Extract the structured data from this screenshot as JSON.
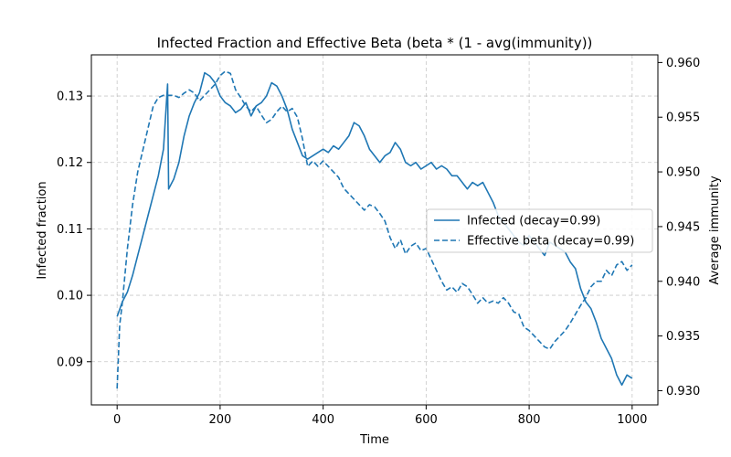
{
  "chart_data": {
    "type": "line",
    "title": "Infected Fraction and Effective Beta (beta * (1 - avg(immunity))",
    "xlabel": "Time",
    "ylabel_left": "Infected fraction",
    "ylabel_right": "Average immunity",
    "xlim": [
      -50,
      1050
    ],
    "ylim_left": [
      0.0835,
      0.1362
    ],
    "ylim_right": [
      0.9287,
      0.9607
    ],
    "xticks": [
      0,
      200,
      400,
      600,
      800,
      1000
    ],
    "yticks_left": [
      0.09,
      0.1,
      0.11,
      0.12,
      0.13
    ],
    "yticks_right": [
      0.93,
      0.935,
      0.94,
      0.945,
      0.95,
      0.955,
      0.96
    ],
    "grid": true,
    "legend_position": "right",
    "color": "#1f77b4",
    "series": [
      {
        "name": "Infected (decay=0.99)",
        "axis": "left",
        "style": "solid",
        "x": [
          0,
          10,
          20,
          30,
          40,
          50,
          60,
          70,
          80,
          90,
          98,
          100,
          110,
          120,
          130,
          140,
          150,
          160,
          170,
          180,
          190,
          200,
          210,
          220,
          230,
          240,
          250,
          260,
          270,
          280,
          290,
          300,
          310,
          320,
          330,
          340,
          350,
          360,
          370,
          380,
          390,
          400,
          410,
          420,
          430,
          440,
          450,
          460,
          470,
          480,
          490,
          500,
          510,
          520,
          530,
          540,
          550,
          560,
          570,
          580,
          590,
          600,
          610,
          620,
          630,
          640,
          650,
          660,
          670,
          680,
          690,
          700,
          710,
          720,
          730,
          740,
          750,
          760,
          770,
          780,
          790,
          800,
          810,
          820,
          830,
          840,
          850,
          860,
          870,
          880,
          890,
          900,
          910,
          920,
          930,
          940,
          950,
          960,
          970,
          980,
          990,
          1000
        ],
        "values": [
          0.0968,
          0.099,
          0.1005,
          0.103,
          0.106,
          0.109,
          0.112,
          0.115,
          0.118,
          0.122,
          0.1318,
          0.116,
          0.1175,
          0.12,
          0.124,
          0.127,
          0.129,
          0.1305,
          0.1335,
          0.133,
          0.132,
          0.13,
          0.129,
          0.1285,
          0.1275,
          0.128,
          0.129,
          0.127,
          0.1285,
          0.129,
          0.13,
          0.132,
          0.1315,
          0.13,
          0.128,
          0.125,
          0.123,
          0.121,
          0.1205,
          0.121,
          0.1215,
          0.122,
          0.1215,
          0.1225,
          0.122,
          0.123,
          0.124,
          0.126,
          0.1255,
          0.124,
          0.122,
          0.121,
          0.12,
          0.121,
          0.1215,
          0.123,
          0.122,
          0.12,
          0.1195,
          0.12,
          0.119,
          0.1195,
          0.12,
          0.119,
          0.1195,
          0.119,
          0.118,
          0.118,
          0.117,
          0.116,
          0.117,
          0.1165,
          0.117,
          0.1155,
          0.114,
          0.112,
          0.111,
          0.11,
          0.109,
          0.108,
          0.1075,
          0.109,
          0.108,
          0.107,
          0.106,
          0.108,
          0.1075,
          0.107,
          0.1065,
          0.105,
          0.104,
          0.101,
          0.099,
          0.098,
          0.096,
          0.0935,
          0.092,
          0.0905,
          0.088,
          0.0865,
          0.088,
          0.0875
        ]
      },
      {
        "name": "Effective beta (decay=0.99)",
        "axis": "right",
        "style": "dashed",
        "x": [
          0,
          5,
          10,
          20,
          30,
          40,
          50,
          60,
          70,
          80,
          90,
          100,
          110,
          120,
          130,
          140,
          150,
          160,
          170,
          180,
          190,
          200,
          210,
          220,
          230,
          240,
          250,
          260,
          270,
          280,
          290,
          300,
          310,
          320,
          330,
          340,
          350,
          360,
          370,
          380,
          390,
          400,
          410,
          420,
          430,
          440,
          450,
          460,
          470,
          480,
          490,
          500,
          510,
          520,
          530,
          540,
          550,
          560,
          570,
          580,
          590,
          600,
          610,
          620,
          630,
          640,
          650,
          660,
          670,
          680,
          690,
          700,
          710,
          720,
          730,
          740,
          750,
          760,
          770,
          780,
          790,
          800,
          810,
          820,
          830,
          840,
          850,
          860,
          870,
          880,
          890,
          900,
          910,
          920,
          930,
          940,
          950,
          960,
          970,
          980,
          990,
          1000
        ],
        "values": [
          0.9302,
          0.936,
          0.938,
          0.943,
          0.947,
          0.95,
          0.952,
          0.954,
          0.956,
          0.9568,
          0.957,
          0.957,
          0.957,
          0.9568,
          0.9572,
          0.9575,
          0.9572,
          0.9565,
          0.957,
          0.9575,
          0.958,
          0.9588,
          0.9592,
          0.959,
          0.9575,
          0.9568,
          0.956,
          0.9555,
          0.956,
          0.9552,
          0.9545,
          0.9548,
          0.9555,
          0.956,
          0.9555,
          0.9558,
          0.955,
          0.953,
          0.9505,
          0.951,
          0.9505,
          0.951,
          0.9505,
          0.95,
          0.9495,
          0.9485,
          0.948,
          0.9475,
          0.947,
          0.9465,
          0.947,
          0.9468,
          0.9462,
          0.9455,
          0.944,
          0.943,
          0.9438,
          0.9425,
          0.9432,
          0.9435,
          0.9428,
          0.943,
          0.942,
          0.941,
          0.94,
          0.9392,
          0.9395,
          0.939,
          0.9398,
          0.9395,
          0.9388,
          0.938,
          0.9385,
          0.938,
          0.9382,
          0.938,
          0.9385,
          0.938,
          0.9372,
          0.937,
          0.9358,
          0.9355,
          0.935,
          0.9345,
          0.934,
          0.9338,
          0.9345,
          0.935,
          0.9355,
          0.9362,
          0.937,
          0.9378,
          0.9385,
          0.9395,
          0.94,
          0.94,
          0.941,
          0.9405,
          0.9415,
          0.9418,
          0.941,
          0.9415
        ]
      }
    ]
  }
}
